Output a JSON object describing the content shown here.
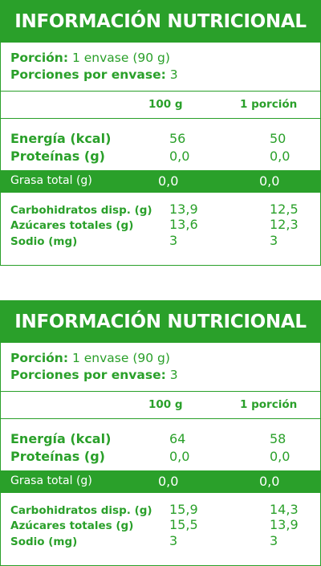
{
  "panels": [
    {
      "title": "INFORMACIÓN NUTRICIONAL",
      "portion_label": "Porción:",
      "portion_value": "1 envase (90 g)",
      "servings_label": "Porciones por envase:",
      "servings_value": "3",
      "col_100g": "100 g",
      "col_portion": "1 porción",
      "rows": [
        {
          "label": "Energía (kcal)",
          "per100": "56",
          "perPortion": "50"
        },
        {
          "label": "Proteínas (g)",
          "per100": "0,0",
          "perPortion": "0,0"
        },
        {
          "label": "Grasa total (g)",
          "per100": "0,0",
          "perPortion": "0,0"
        },
        {
          "label": "Carbohidratos disp. (g)",
          "per100": "13,9",
          "perPortion": "12,5"
        },
        {
          "label": "Azúcares totales (g)",
          "per100": "13,6",
          "perPortion": "12,3"
        },
        {
          "label": "Sodio (mg)",
          "per100": "3",
          "perPortion": "3"
        }
      ]
    },
    {
      "title": "INFORMACIÓN NUTRICIONAL",
      "portion_label": "Porción:",
      "portion_value": "1 envase (90 g)",
      "servings_label": "Porciones por envase:",
      "servings_value": "3",
      "col_100g": "100 g",
      "col_portion": "1 porción",
      "rows": [
        {
          "label": "Energía (kcal)",
          "per100": "64",
          "perPortion": "58"
        },
        {
          "label": "Proteínas (g)",
          "per100": "0,0",
          "perPortion": "0,0"
        },
        {
          "label": "Grasa total (g)",
          "per100": "0,0",
          "perPortion": "0,0"
        },
        {
          "label": "Carbohidratos disp. (g)",
          "per100": "15,9",
          "perPortion": "14,3"
        },
        {
          "label": "Azúcares totales (g)",
          "per100": "15,5",
          "perPortion": "13,9"
        },
        {
          "label": "Sodio (mg)",
          "per100": "3",
          "perPortion": "3"
        }
      ]
    }
  ],
  "colors": {
    "accent": "#2aa02a",
    "background": "#ffffff"
  }
}
